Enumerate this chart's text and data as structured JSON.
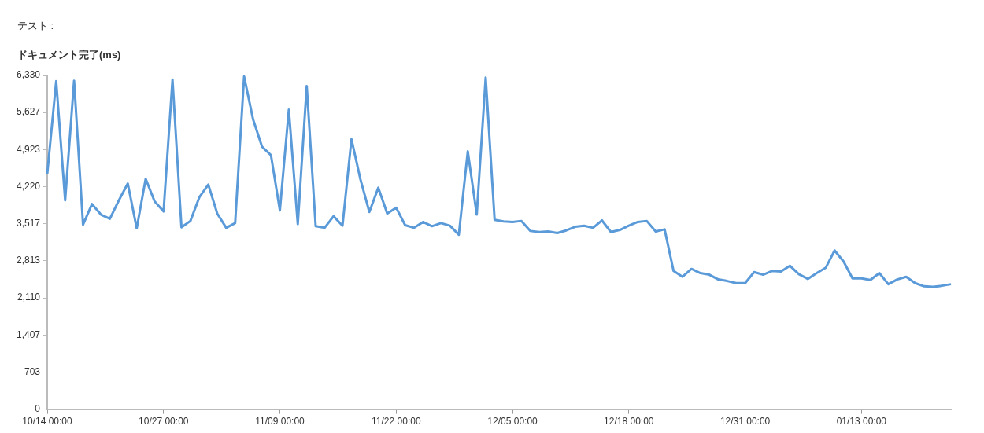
{
  "chart_data": {
    "type": "line",
    "legend_title": "テスト :",
    "ylabel": "ドキュメント完了(ms)",
    "categories": [
      "10/14 00:00",
      null,
      null,
      null,
      null,
      null,
      null,
      null,
      null,
      null,
      null,
      null,
      null,
      "10/27 00:00",
      null,
      null,
      null,
      null,
      null,
      null,
      null,
      null,
      null,
      null,
      null,
      null,
      "11/09 00:00",
      null,
      null,
      null,
      null,
      null,
      null,
      null,
      null,
      null,
      null,
      null,
      null,
      "11/22 00:00",
      null,
      null,
      null,
      null,
      null,
      null,
      null,
      null,
      null,
      null,
      null,
      null,
      "12/05 00:00",
      null,
      null,
      null,
      null,
      null,
      null,
      null,
      null,
      null,
      null,
      null,
      null,
      "12/18 00:00",
      null,
      null,
      null,
      null,
      null,
      null,
      null,
      null,
      null,
      null,
      null,
      null,
      "12/31 00:00",
      null,
      null,
      null,
      null,
      null,
      null,
      null,
      null,
      null,
      null,
      null,
      null,
      "01/13 00:00",
      null,
      null,
      null,
      null,
      null,
      null,
      null,
      null,
      null,
      null
    ],
    "series": [
      {
        "color": "#5a9ad8",
        "values": [
          4460,
          6220,
          3960,
          6230,
          3500,
          3890,
          3690,
          3610,
          3960,
          4280,
          3430,
          4370,
          3940,
          3750,
          6250,
          3450,
          3570,
          4020,
          4260,
          3710,
          3440,
          3530,
          6310,
          5500,
          4980,
          4820,
          3770,
          5680,
          3510,
          6130,
          3470,
          3440,
          3660,
          3480,
          5120,
          4360,
          3740,
          4200,
          3710,
          3820,
          3490,
          3440,
          3550,
          3470,
          3530,
          3480,
          3310,
          4890,
          3690,
          6290,
          3590,
          3560,
          3550,
          3570,
          3380,
          3360,
          3370,
          3340,
          3390,
          3460,
          3480,
          3440,
          3580,
          3360,
          3400,
          3480,
          3550,
          3570,
          3370,
          3410,
          2620,
          2510,
          2660,
          2580,
          2550,
          2460,
          2430,
          2390,
          2390,
          2600,
          2550,
          2620,
          2610,
          2720,
          2560,
          2470,
          2580,
          2680,
          3010,
          2800,
          2480,
          2480,
          2450,
          2580,
          2370,
          2460,
          2510,
          2390,
          2330,
          2320,
          2340,
          2370
        ]
      }
    ],
    "ylim": [
      0,
      6330
    ],
    "yticks": [
      0,
      703,
      {
        "value": 1407,
        "label": "1,407"
      },
      {
        "value": 2110,
        "label": "2,110"
      },
      {
        "value": 2813,
        "label": "2,813"
      },
      {
        "value": 3517,
        "label": "3,517"
      },
      {
        "value": 4220,
        "label": "4,220"
      },
      {
        "value": 4923,
        "label": "4,923"
      },
      {
        "value": 5627,
        "label": "5,627"
      },
      {
        "value": 6330,
        "label": "6,330"
      }
    ],
    "grid": false,
    "legend": false,
    "marker": "none"
  }
}
